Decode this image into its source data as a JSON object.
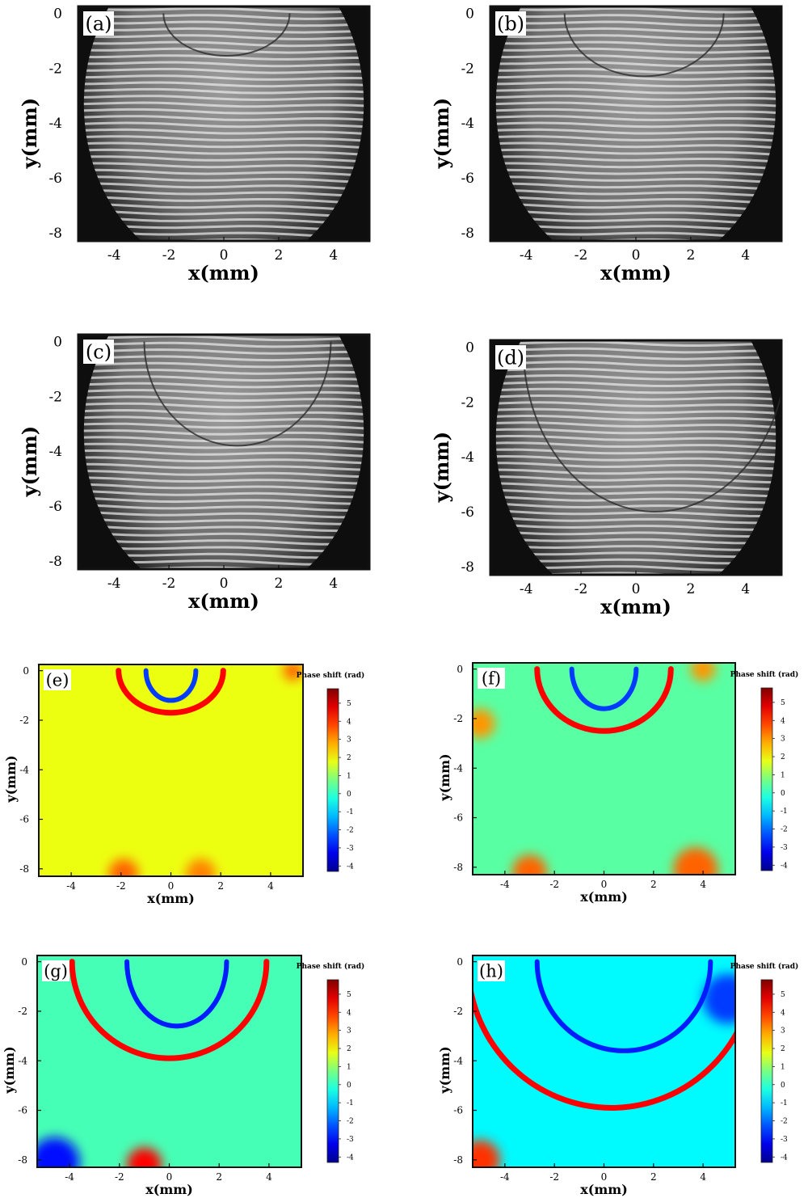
{
  "figure": {
    "panels": [
      {
        "id": "a",
        "label": "(a)",
        "kind": "interferogram",
        "xlabel": "x(mm)",
        "ylabel": "y(mm)",
        "xticks": [
          -4,
          -2,
          0,
          2,
          4
        ],
        "yticks": [
          0,
          -2,
          -4,
          -6,
          -8
        ],
        "xlim": [
          -5.3,
          5.3
        ],
        "ylim": [
          -8.3,
          0.25
        ],
        "arcs": [
          {
            "cx": 0.1,
            "cy": 0,
            "rx": 2.3,
            "ry": 1.55
          }
        ]
      },
      {
        "id": "b",
        "label": "(b)",
        "kind": "interferogram",
        "xlabel": "x(mm)",
        "ylabel": "y(mm)",
        "xticks": [
          -4,
          -2,
          0,
          2,
          4
        ],
        "yticks": [
          0,
          -2,
          -4,
          -6,
          -8
        ],
        "xlim": [
          -5.3,
          5.3
        ],
        "ylim": [
          -8.3,
          0.25
        ],
        "arcs": [
          {
            "cx": 0.3,
            "cy": 0,
            "rx": 2.9,
            "ry": 2.3
          }
        ]
      },
      {
        "id": "c",
        "label": "(c)",
        "kind": "interferogram",
        "xlabel": "x(mm)",
        "ylabel": "y(mm)",
        "xticks": [
          -4,
          -2,
          0,
          2,
          4
        ],
        "yticks": [
          0,
          -2,
          -4,
          -6,
          -8
        ],
        "xlim": [
          -5.3,
          5.3
        ],
        "ylim": [
          -8.3,
          0.25
        ],
        "arcs": [
          {
            "cx": 0.5,
            "cy": 0,
            "rx": 3.4,
            "ry": 3.8
          }
        ]
      },
      {
        "id": "d",
        "label": "(d)",
        "kind": "interferogram",
        "xlabel": "x(mm)",
        "ylabel": "y(mm)",
        "xticks": [
          -4,
          -2,
          0,
          2,
          4
        ],
        "yticks": [
          0,
          -2,
          -4,
          -6,
          -8
        ],
        "xlim": [
          -5.3,
          5.3
        ],
        "ylim": [
          -8.3,
          0.25
        ],
        "arcs": [
          {
            "cx": 0.7,
            "cy": 0,
            "rx": 4.8,
            "ry": 6.0
          }
        ]
      },
      {
        "id": "e",
        "label": "(e)",
        "kind": "phasemap",
        "xlabel": "x(mm)",
        "ylabel": "y(mm)",
        "xticks": [
          -4,
          -2,
          0,
          2,
          4
        ],
        "yticks": [
          0,
          -2,
          -4,
          -6,
          -8
        ],
        "xlim": [
          -5.3,
          5.3
        ],
        "ylim": [
          -8.3,
          0.25
        ],
        "background": 1.8,
        "fronts": [
          {
            "cx": 0,
            "cy": 0,
            "rx": 2.1,
            "ry": 1.7,
            "value": 4.5
          },
          {
            "cx": 0,
            "cy": 0,
            "rx": 1.0,
            "ry": 1.2,
            "value": -2.5
          }
        ],
        "blobs": [
          {
            "x": -1.9,
            "y": -8.2,
            "r": 0.6,
            "value": 3.5
          },
          {
            "x": 1.2,
            "y": -8.2,
            "r": 0.6,
            "value": 3.2
          },
          {
            "x": 4.9,
            "y": 0,
            "r": 0.4,
            "value": 3.5
          }
        ],
        "colorbar": {
          "title": "Phase shift (rad)",
          "ticks": [
            5,
            4,
            3,
            2,
            1,
            0,
            -1,
            -2,
            -3,
            -4
          ],
          "range": [
            -4.3,
            5.8
          ]
        }
      },
      {
        "id": "f",
        "label": "(f)",
        "kind": "phasemap",
        "xlabel": "x(mm)",
        "ylabel": "y(mm)",
        "xticks": [
          -4,
          -2,
          0,
          2,
          4
        ],
        "yticks": [
          0,
          -2,
          -4,
          -6,
          -8
        ],
        "xlim": [
          -5.3,
          5.3
        ],
        "ylim": [
          -8.3,
          0.25
        ],
        "background": 0.4,
        "fronts": [
          {
            "cx": 0,
            "cy": 0,
            "rx": 2.7,
            "ry": 2.5,
            "value": 4.5
          },
          {
            "cx": 0,
            "cy": 0,
            "rx": 1.3,
            "ry": 1.6,
            "value": -2.5
          }
        ],
        "blobs": [
          {
            "x": -3.0,
            "y": -8.2,
            "r": 0.7,
            "value": 3.5
          },
          {
            "x": 3.7,
            "y": -8.1,
            "r": 0.9,
            "value": 3.5
          },
          {
            "x": -5.0,
            "y": -2.2,
            "r": 0.6,
            "value": 3.0
          },
          {
            "x": 4.0,
            "y": 0,
            "r": 0.5,
            "value": 3.0
          }
        ],
        "colorbar": {
          "title": "Phase shift (rad)",
          "ticks": [
            5,
            4,
            3,
            2,
            1,
            0,
            -1,
            -2,
            -3,
            -4
          ],
          "range": [
            -4.3,
            5.8
          ]
        }
      },
      {
        "id": "g",
        "label": "(g)",
        "kind": "phasemap",
        "xlabel": "x(mm)",
        "ylabel": "y(mm)",
        "xticks": [
          -4,
          -2,
          0,
          2,
          4
        ],
        "yticks": [
          0,
          -2,
          -4,
          -6,
          -8
        ],
        "xlim": [
          -5.3,
          5.3
        ],
        "ylim": [
          -8.3,
          0.25
        ],
        "background": 0.2,
        "fronts": [
          {
            "cx": 0,
            "cy": 0,
            "rx": 3.9,
            "ry": 3.9,
            "value": 4.5
          },
          {
            "cx": 0.3,
            "cy": 0,
            "rx": 2.0,
            "ry": 2.6,
            "value": -2.8
          }
        ],
        "blobs": [
          {
            "x": -1.0,
            "y": -8.2,
            "r": 0.7,
            "value": 4.5
          },
          {
            "x": -4.6,
            "y": -8.1,
            "r": 1.0,
            "value": -3.0
          }
        ],
        "colorbar": {
          "title": "Phase shift (rad)",
          "ticks": [
            5,
            4,
            3,
            2,
            1,
            0,
            -1,
            -2,
            -3,
            -4
          ],
          "range": [
            -4.3,
            5.8
          ]
        }
      },
      {
        "id": "h",
        "label": "(h)",
        "kind": "phasemap",
        "xlabel": "x(mm)",
        "ylabel": "y(mm)",
        "xticks": [
          -4,
          -2,
          0,
          2,
          4
        ],
        "yticks": [
          0,
          -2,
          -4,
          -6,
          -8
        ],
        "xlim": [
          -5.3,
          5.3
        ],
        "ylim": [
          -8.3,
          0.25
        ],
        "background": -0.6,
        "fronts": [
          {
            "cx": 0.3,
            "cy": 0,
            "rx": 5.8,
            "ry": 5.9,
            "value": 4.5
          },
          {
            "cx": 0.8,
            "cy": 0,
            "rx": 3.5,
            "ry": 3.6,
            "value": -2.8
          }
        ],
        "blobs": [
          {
            "x": -5.0,
            "y": -8.0,
            "r": 0.8,
            "value": 4.0
          },
          {
            "x": 5.0,
            "y": -1.5,
            "r": 1.0,
            "value": -2.5
          }
        ],
        "colorbar": {
          "title": "Phase shift (rad)",
          "ticks": [
            5,
            4,
            3,
            2,
            1,
            0,
            -1,
            -2,
            -3,
            -4
          ],
          "range": [
            -4.3,
            5.8
          ]
        }
      }
    ]
  },
  "chart_data": [
    {
      "type": "heatmap",
      "panel": "(a)",
      "title": "",
      "xlabel": "x(mm)",
      "ylabel": "y(mm)",
      "xlim": [
        -5.3,
        5.3
      ],
      "ylim": [
        -8.3,
        0.25
      ],
      "grid": false
    },
    {
      "type": "heatmap",
      "panel": "(b)",
      "title": "",
      "xlabel": "x(mm)",
      "ylabel": "y(mm)",
      "xlim": [
        -5.3,
        5.3
      ],
      "ylim": [
        -8.3,
        0.25
      ],
      "grid": false
    },
    {
      "type": "heatmap",
      "panel": "(c)",
      "title": "",
      "xlabel": "x(mm)",
      "ylabel": "y(mm)",
      "xlim": [
        -5.3,
        5.3
      ],
      "ylim": [
        -8.3,
        0.25
      ],
      "grid": false
    },
    {
      "type": "heatmap",
      "panel": "(d)",
      "title": "",
      "xlabel": "x(mm)",
      "ylabel": "y(mm)",
      "xlim": [
        -5.3,
        5.3
      ],
      "ylim": [
        -8.3,
        0.25
      ],
      "grid": false
    },
    {
      "type": "heatmap",
      "panel": "(e)",
      "title": "",
      "xlabel": "x(mm)",
      "ylabel": "y(mm)",
      "xlim": [
        -5.3,
        5.3
      ],
      "ylim": [
        -8.3,
        0.25
      ],
      "colorbar_label": "Phase shift (rad)",
      "zlim": [
        -4.3,
        5.8
      ],
      "grid": false
    },
    {
      "type": "heatmap",
      "panel": "(f)",
      "title": "",
      "xlabel": "x(mm)",
      "ylabel": "y(mm)",
      "xlim": [
        -5.3,
        5.3
      ],
      "ylim": [
        -8.3,
        0.25
      ],
      "colorbar_label": "Phase shift (rad)",
      "zlim": [
        -4.3,
        5.8
      ],
      "grid": false
    },
    {
      "type": "heatmap",
      "panel": "(g)",
      "title": "",
      "xlabel": "x(mm)",
      "ylabel": "y(mm)",
      "xlim": [
        -5.3,
        5.3
      ],
      "ylim": [
        -8.3,
        0.25
      ],
      "colorbar_label": "Phase shift (rad)",
      "zlim": [
        -4.3,
        5.8
      ],
      "grid": false
    },
    {
      "type": "heatmap",
      "panel": "(h)",
      "title": "",
      "xlabel": "x(mm)",
      "ylabel": "y(mm)",
      "xlim": [
        -5.3,
        5.3
      ],
      "ylim": [
        -8.3,
        0.25
      ],
      "colorbar_label": "Phase shift (rad)",
      "zlim": [
        -4.3,
        5.8
      ],
      "grid": false
    }
  ]
}
